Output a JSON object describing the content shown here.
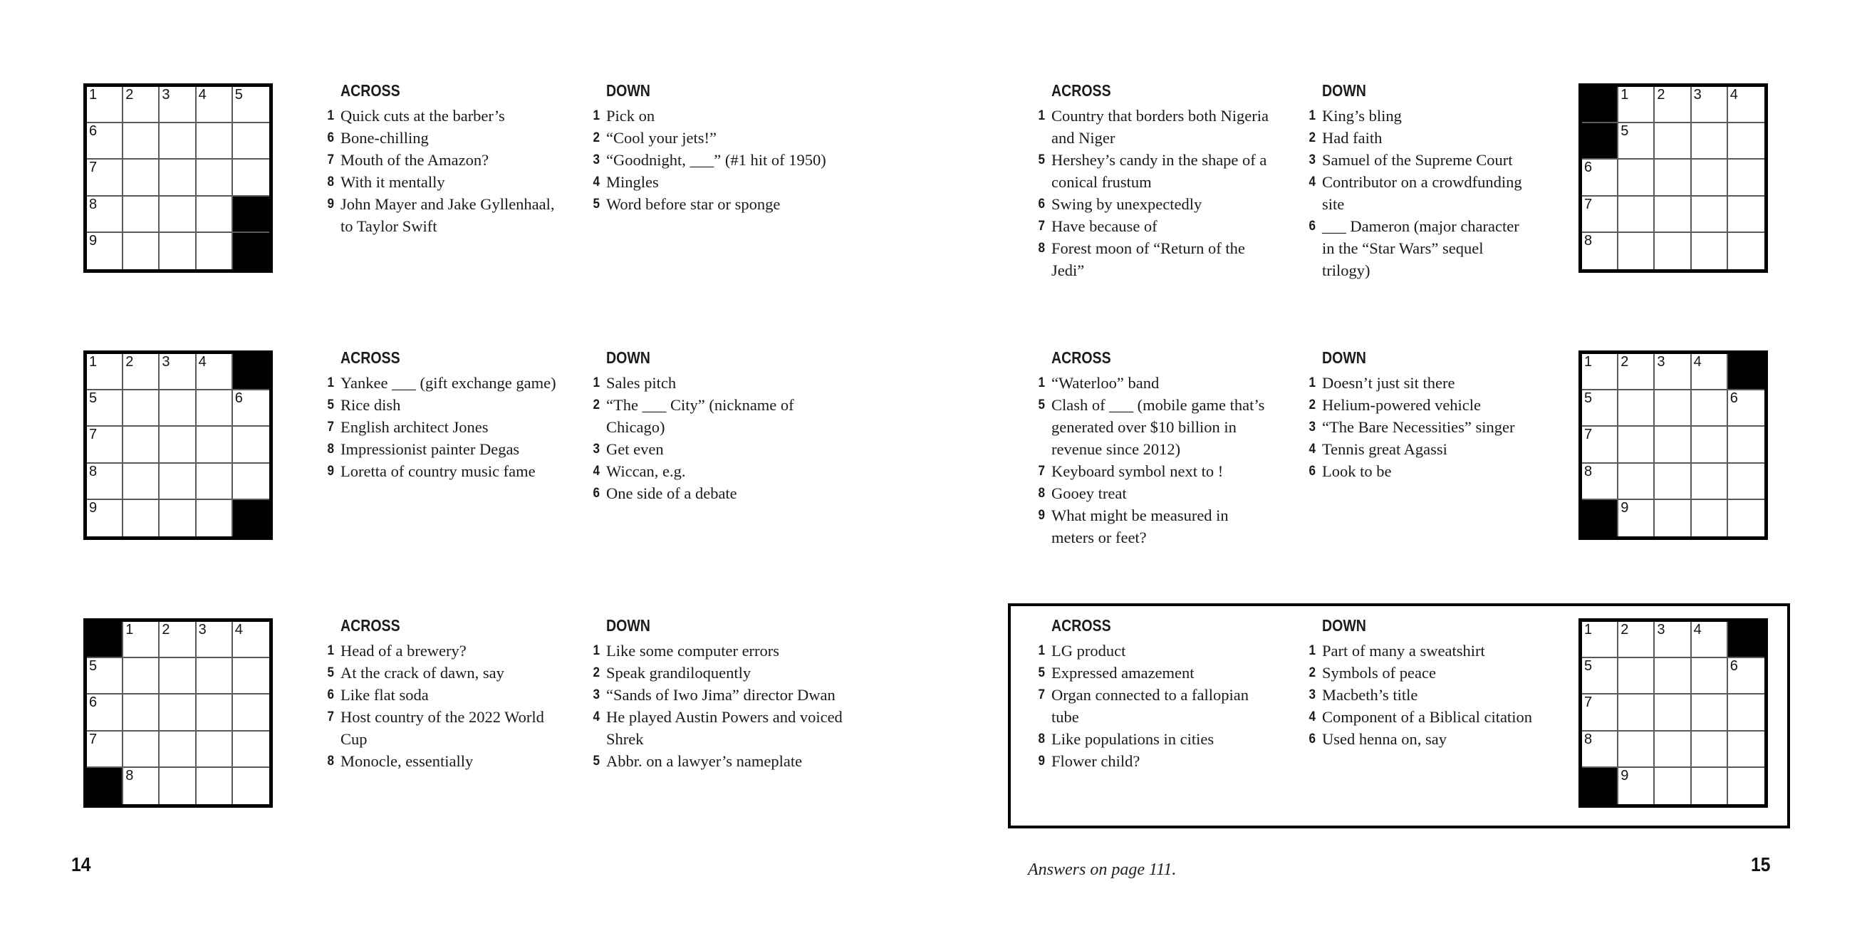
{
  "labels": {
    "across": "ACROSS",
    "down": "DOWN"
  },
  "footer": {
    "left_page_number": "14",
    "right_page_number": "15",
    "answers_note": "Answers on page 111."
  },
  "colors": {
    "ink": "#1a1a1a",
    "paper": "#ffffff",
    "black_square": "#000000",
    "grid_line": "#5a5a5a"
  },
  "puzzles": [
    {
      "name": "puzzle-1-top-left",
      "grid": [
        [
          1,
          2,
          3,
          4,
          5
        ],
        [
          6,
          ".",
          ".",
          ".",
          "."
        ],
        [
          7,
          ".",
          ".",
          ".",
          "."
        ],
        [
          8,
          ".",
          ".",
          ".",
          "#"
        ],
        [
          9,
          ".",
          ".",
          ".",
          "#"
        ]
      ],
      "across": [
        [
          1,
          "Quick cuts at the barber’s"
        ],
        [
          6,
          "Bone-chilling"
        ],
        [
          7,
          "Mouth of the Amazon?"
        ],
        [
          8,
          "With it mentally"
        ],
        [
          9,
          "John Mayer and Jake Gyllenhaal, to Taylor Swift"
        ]
      ],
      "down": [
        [
          1,
          "Pick on"
        ],
        [
          2,
          "“Cool your jets!”"
        ],
        [
          3,
          "“Goodnight, ___” (#1 hit of 1950)"
        ],
        [
          4,
          "Mingles"
        ],
        [
          5,
          "Word before star or sponge"
        ]
      ]
    },
    {
      "name": "puzzle-2-middle-left",
      "grid": [
        [
          1,
          2,
          3,
          4,
          "#"
        ],
        [
          5,
          ".",
          ".",
          ".",
          6
        ],
        [
          7,
          ".",
          ".",
          ".",
          "."
        ],
        [
          8,
          ".",
          ".",
          ".",
          "."
        ],
        [
          9,
          ".",
          ".",
          ".",
          "#"
        ]
      ],
      "across": [
        [
          1,
          "Yankee ___ (gift exchange game)"
        ],
        [
          5,
          "Rice dish"
        ],
        [
          7,
          "English architect Jones"
        ],
        [
          8,
          "Impressionist painter Degas"
        ],
        [
          9,
          "Loretta of country music fame"
        ]
      ],
      "down": [
        [
          1,
          "Sales pitch"
        ],
        [
          2,
          "“The ___ City” (nickname of Chicago)"
        ],
        [
          3,
          "Get even"
        ],
        [
          4,
          "Wiccan, e.g."
        ],
        [
          6,
          "One side of a debate"
        ]
      ]
    },
    {
      "name": "puzzle-3-bottom-left",
      "grid": [
        [
          "#",
          1,
          2,
          3,
          4
        ],
        [
          5,
          ".",
          ".",
          ".",
          "."
        ],
        [
          6,
          ".",
          ".",
          ".",
          "."
        ],
        [
          7,
          ".",
          ".",
          ".",
          "."
        ],
        [
          "#",
          8,
          ".",
          ".",
          "."
        ]
      ],
      "across": [
        [
          1,
          "Head of a brewery?"
        ],
        [
          5,
          "At the crack of dawn, say"
        ],
        [
          6,
          "Like flat soda"
        ],
        [
          7,
          "Host country of the 2022 World Cup"
        ],
        [
          8,
          "Monocle, essentially"
        ]
      ],
      "down": [
        [
          1,
          "Like some computer errors"
        ],
        [
          2,
          "Speak grandiloquently"
        ],
        [
          3,
          "“Sands of Iwo Jima” director Dwan"
        ],
        [
          4,
          "He played Austin Powers and voiced Shrek"
        ],
        [
          5,
          "Abbr. on a lawyer’s nameplate"
        ]
      ]
    },
    {
      "name": "puzzle-4-top-right",
      "grid": [
        [
          "#",
          1,
          2,
          3,
          4
        ],
        [
          "#",
          5,
          ".",
          ".",
          "."
        ],
        [
          6,
          ".",
          ".",
          ".",
          "."
        ],
        [
          7,
          ".",
          ".",
          ".",
          "."
        ],
        [
          8,
          ".",
          ".",
          ".",
          "."
        ]
      ],
      "across": [
        [
          1,
          "Country that borders both Nigeria and Niger"
        ],
        [
          5,
          "Hershey’s candy in the shape of a conical frustum"
        ],
        [
          6,
          "Swing by unexpectedly"
        ],
        [
          7,
          "Have because of"
        ],
        [
          8,
          "Forest moon of “Return of the Jedi”"
        ]
      ],
      "down": [
        [
          1,
          "King’s bling"
        ],
        [
          2,
          "Had faith"
        ],
        [
          3,
          "Samuel of the Supreme Court"
        ],
        [
          4,
          "Contributor on a crowdfunding site"
        ],
        [
          6,
          "___ Dameron (major character in the “Star Wars” sequel trilogy)"
        ]
      ]
    },
    {
      "name": "puzzle-5-middle-right",
      "grid": [
        [
          1,
          2,
          3,
          4,
          "#"
        ],
        [
          5,
          ".",
          ".",
          ".",
          6
        ],
        [
          7,
          ".",
          ".",
          ".",
          "."
        ],
        [
          8,
          ".",
          ".",
          ".",
          "."
        ],
        [
          "#",
          9,
          ".",
          ".",
          "."
        ]
      ],
      "across": [
        [
          1,
          "“Waterloo” band"
        ],
        [
          5,
          "Clash of ___ (mobile game that’s generated over $10 billion in revenue since 2012)"
        ],
        [
          7,
          "Keyboard symbol next to !"
        ],
        [
          8,
          "Gooey treat"
        ],
        [
          9,
          "What might be measured in meters or feet?"
        ]
      ],
      "down": [
        [
          1,
          "Doesn’t just sit there"
        ],
        [
          2,
          "Helium-powered vehicle"
        ],
        [
          3,
          "“The Bare Necessities” singer"
        ],
        [
          4,
          "Tennis great Agassi"
        ],
        [
          6,
          "Look to be"
        ]
      ]
    },
    {
      "name": "puzzle-6-bottom-right-featured",
      "grid": [
        [
          1,
          2,
          3,
          4,
          "#"
        ],
        [
          5,
          ".",
          ".",
          ".",
          6
        ],
        [
          7,
          ".",
          ".",
          ".",
          "."
        ],
        [
          8,
          ".",
          ".",
          ".",
          "."
        ],
        [
          "#",
          9,
          ".",
          ".",
          "."
        ]
      ],
      "across": [
        [
          1,
          "LG product"
        ],
        [
          5,
          "Expressed amazement"
        ],
        [
          7,
          "Organ connected to a fallopian tube"
        ],
        [
          8,
          "Like populations in cities"
        ],
        [
          9,
          "Flower child?"
        ]
      ],
      "down": [
        [
          1,
          "Part of many a sweatshirt"
        ],
        [
          2,
          "Symbols of peace"
        ],
        [
          3,
          "Macbeth’s title"
        ],
        [
          4,
          "Component of a Biblical citation"
        ],
        [
          6,
          "Used henna on, say"
        ]
      ]
    }
  ]
}
